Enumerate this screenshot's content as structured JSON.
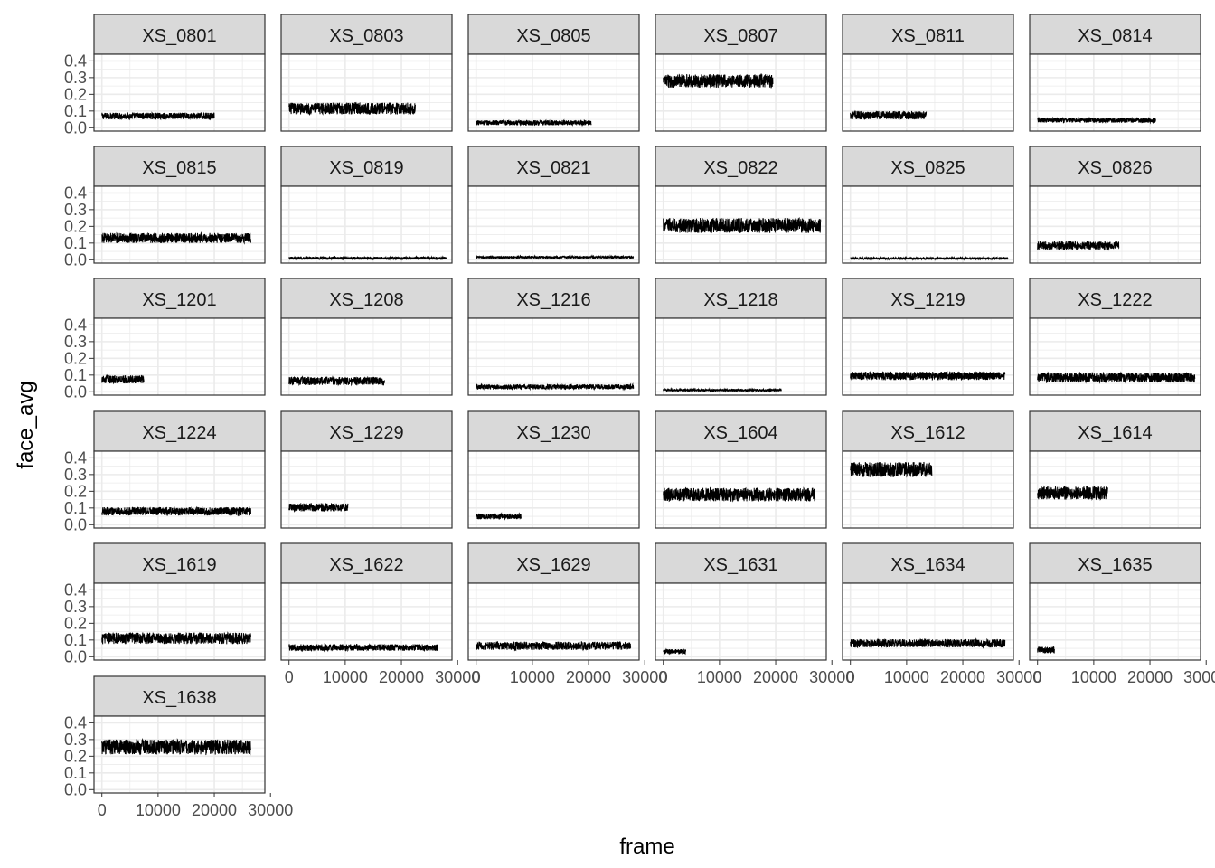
{
  "chart_data": {
    "type": "line",
    "layout": "facet-grid",
    "ncol": 6,
    "xlabel": "frame",
    "ylabel": "face_avg",
    "xlim": [
      -1400,
      29000
    ],
    "ylim": [
      -0.02,
      0.44
    ],
    "x_ticks": [
      0,
      10000,
      20000,
      30000
    ],
    "x_tick_labels": [
      "0",
      "10000",
      "20000",
      "30000"
    ],
    "y_ticks": [
      0.0,
      0.1,
      0.2,
      0.3,
      0.4
    ],
    "y_tick_labels": [
      "0.0",
      "0.1",
      "0.2",
      "0.3",
      "0.4"
    ],
    "grid": true,
    "line_color": "#000000",
    "strip_fill": "#d9d9d9",
    "panel_border": "#333333",
    "grid_color": "#ebebeb",
    "facets": [
      {
        "label": "XS_0801",
        "frame_max": 20000,
        "mean": 0.07,
        "spread": 0.04
      },
      {
        "label": "XS_0803",
        "frame_max": 22500,
        "mean": 0.115,
        "spread": 0.07
      },
      {
        "label": "XS_0805",
        "frame_max": 20500,
        "mean": 0.03,
        "spread": 0.03
      },
      {
        "label": "XS_0807",
        "frame_max": 19500,
        "mean": 0.28,
        "spread": 0.08
      },
      {
        "label": "XS_0811",
        "frame_max": 13500,
        "mean": 0.075,
        "spread": 0.05
      },
      {
        "label": "XS_0814",
        "frame_max": 21000,
        "mean": 0.045,
        "spread": 0.03
      },
      {
        "label": "XS_0815",
        "frame_max": 26500,
        "mean": 0.13,
        "spread": 0.06
      },
      {
        "label": "XS_0819",
        "frame_max": 28000,
        "mean": 0.01,
        "spread": 0.015
      },
      {
        "label": "XS_0821",
        "frame_max": 28000,
        "mean": 0.015,
        "spread": 0.015
      },
      {
        "label": "XS_0822",
        "frame_max": 28000,
        "mean": 0.205,
        "spread": 0.09
      },
      {
        "label": "XS_0825",
        "frame_max": 28000,
        "mean": 0.008,
        "spread": 0.012
      },
      {
        "label": "XS_0826",
        "frame_max": 14500,
        "mean": 0.085,
        "spread": 0.05
      },
      {
        "label": "XS_1201",
        "frame_max": 7500,
        "mean": 0.075,
        "spread": 0.05
      },
      {
        "label": "XS_1208",
        "frame_max": 17000,
        "mean": 0.065,
        "spread": 0.05
      },
      {
        "label": "XS_1216",
        "frame_max": 28000,
        "mean": 0.03,
        "spread": 0.03
      },
      {
        "label": "XS_1218",
        "frame_max": 21000,
        "mean": 0.01,
        "spread": 0.015
      },
      {
        "label": "XS_1219",
        "frame_max": 27500,
        "mean": 0.095,
        "spread": 0.05
      },
      {
        "label": "XS_1222",
        "frame_max": 28000,
        "mean": 0.085,
        "spread": 0.06
      },
      {
        "label": "XS_1224",
        "frame_max": 26500,
        "mean": 0.08,
        "spread": 0.05
      },
      {
        "label": "XS_1229",
        "frame_max": 10500,
        "mean": 0.105,
        "spread": 0.05
      },
      {
        "label": "XS_1230",
        "frame_max": 8000,
        "mean": 0.05,
        "spread": 0.035
      },
      {
        "label": "XS_1604",
        "frame_max": 27000,
        "mean": 0.18,
        "spread": 0.08
      },
      {
        "label": "XS_1612",
        "frame_max": 14500,
        "mean": 0.33,
        "spread": 0.09
      },
      {
        "label": "XS_1614",
        "frame_max": 12500,
        "mean": 0.19,
        "spread": 0.08
      },
      {
        "label": "XS_1619",
        "frame_max": 26500,
        "mean": 0.11,
        "spread": 0.07
      },
      {
        "label": "XS_1622",
        "frame_max": 26500,
        "mean": 0.055,
        "spread": 0.04
      },
      {
        "label": "XS_1629",
        "frame_max": 27500,
        "mean": 0.065,
        "spread": 0.05
      },
      {
        "label": "XS_1631",
        "frame_max": 4000,
        "mean": 0.03,
        "spread": 0.03
      },
      {
        "label": "XS_1634",
        "frame_max": 27500,
        "mean": 0.08,
        "spread": 0.05
      },
      {
        "label": "XS_1635",
        "frame_max": 3000,
        "mean": 0.04,
        "spread": 0.04
      },
      {
        "label": "XS_1638",
        "frame_max": 26500,
        "mean": 0.255,
        "spread": 0.09
      }
    ]
  }
}
